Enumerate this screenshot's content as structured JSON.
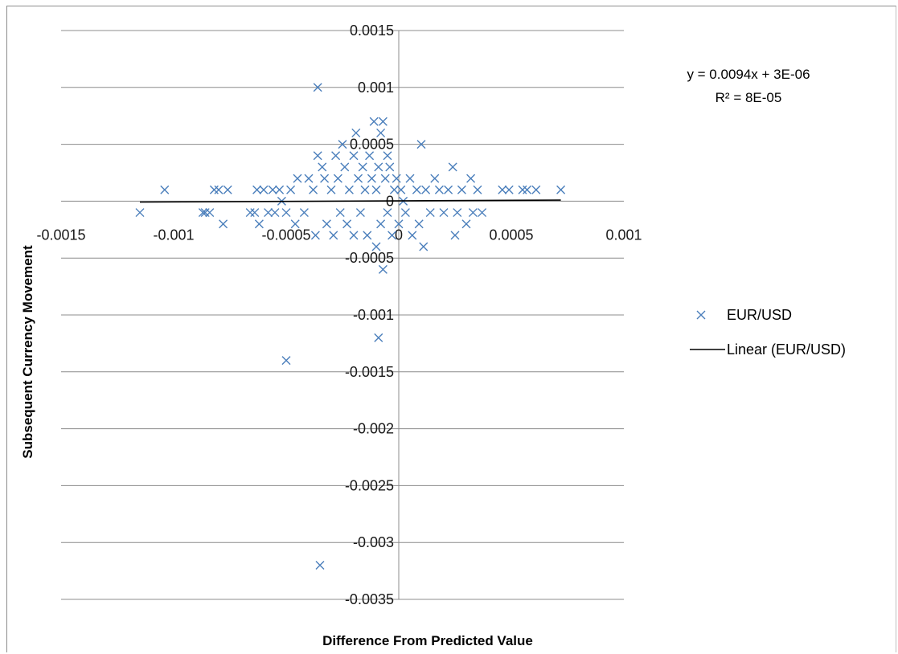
{
  "chart_data": {
    "type": "scatter",
    "xlabel": "Difference From Predicted Value",
    "ylabel": "Subsequent Currency Movement",
    "xlim": [
      -0.0015,
      0.001
    ],
    "ylim": [
      -0.0035,
      0.0015
    ],
    "x_ticks": [
      "-0.0015",
      "-0.001",
      "-0.0005",
      "0",
      "0.0005",
      "0.001"
    ],
    "y_ticks": [
      "0.0015",
      "0.001",
      "0.0005",
      "0",
      "-0.0005",
      "-0.001",
      "-0.0015",
      "-0.002",
      "-0.0025",
      "-0.003",
      "-0.0035"
    ],
    "grid": "horizontal",
    "legend_position": "right",
    "trendline": {
      "equation": "y = 0.0094x + 3E-06",
      "r2": "R² = 8E-05",
      "slope": 0.0094,
      "intercept": 3e-06,
      "x_range": [
        -0.00115,
        0.00072
      ]
    },
    "series": [
      {
        "name": "EUR/USD",
        "marker": "x",
        "color": "#4a7ebb",
        "points": [
          [
            -0.00115,
            -0.0001
          ],
          [
            -0.00104,
            0.0001
          ],
          [
            -0.00087,
            -0.0001
          ],
          [
            -0.00086,
            -0.0001
          ],
          [
            -0.00084,
            -0.0001
          ],
          [
            -0.00082,
            0.0001
          ],
          [
            -0.0008,
            0.0001
          ],
          [
            -0.00078,
            -0.0002
          ],
          [
            -0.00076,
            0.0001
          ],
          [
            -0.00066,
            -0.0001
          ],
          [
            -0.00064,
            -0.0001
          ],
          [
            -0.00063,
            0.0001
          ],
          [
            -0.00062,
            -0.0002
          ],
          [
            -0.0006,
            0.0001
          ],
          [
            -0.00058,
            -0.0001
          ],
          [
            -0.00056,
            0.0001
          ],
          [
            -0.00055,
            -0.0001
          ],
          [
            -0.00053,
            0.0001
          ],
          [
            -0.00052,
            0.0
          ],
          [
            -0.0005,
            -0.0001
          ],
          [
            -0.0005,
            -0.0014
          ],
          [
            -0.00048,
            0.0001
          ],
          [
            -0.00046,
            -0.0002
          ],
          [
            -0.00045,
            0.0002
          ],
          [
            -0.00042,
            -0.0001
          ],
          [
            -0.0004,
            0.0002
          ],
          [
            -0.00038,
            0.0001
          ],
          [
            -0.00037,
            -0.0003
          ],
          [
            -0.00036,
            0.0004
          ],
          [
            -0.00036,
            0.001
          ],
          [
            -0.00035,
            -0.0032
          ],
          [
            -0.00034,
            0.0003
          ],
          [
            -0.00033,
            0.0002
          ],
          [
            -0.00032,
            -0.0002
          ],
          [
            -0.0003,
            0.0001
          ],
          [
            -0.00029,
            -0.0003
          ],
          [
            -0.00028,
            0.0004
          ],
          [
            -0.00027,
            0.0002
          ],
          [
            -0.00026,
            -0.0001
          ],
          [
            -0.00025,
            0.0005
          ],
          [
            -0.00024,
            0.0003
          ],
          [
            -0.00023,
            -0.0002
          ],
          [
            -0.00022,
            0.0001
          ],
          [
            -0.0002,
            0.0004
          ],
          [
            -0.0002,
            -0.0003
          ],
          [
            -0.00019,
            0.0006
          ],
          [
            -0.00018,
            0.0002
          ],
          [
            -0.00017,
            -0.0001
          ],
          [
            -0.00016,
            0.0003
          ],
          [
            -0.00015,
            0.0001
          ],
          [
            -0.00014,
            -0.0003
          ],
          [
            -0.00013,
            0.0004
          ],
          [
            -0.00012,
            0.0002
          ],
          [
            -0.00011,
            0.0007
          ],
          [
            -0.0001,
            -0.0004
          ],
          [
            -0.0001,
            0.0001
          ],
          [
            -9e-05,
            0.0003
          ],
          [
            -9e-05,
            -0.0012
          ],
          [
            -8e-05,
            0.0006
          ],
          [
            -8e-05,
            -0.0002
          ],
          [
            -7e-05,
            0.0007
          ],
          [
            -7e-05,
            -0.0006
          ],
          [
            -6e-05,
            0.0002
          ],
          [
            -5e-05,
            0.0004
          ],
          [
            -5e-05,
            -0.0001
          ],
          [
            -4e-05,
            0.0003
          ],
          [
            -3e-05,
            -0.0003
          ],
          [
            -2e-05,
            0.0001
          ],
          [
            -1e-05,
            0.0002
          ],
          [
            0.0,
            -0.0002
          ],
          [
            1e-05,
            0.0001
          ],
          [
            2e-05,
            0.0
          ],
          [
            3e-05,
            -0.0001
          ],
          [
            5e-05,
            0.0002
          ],
          [
            6e-05,
            -0.0003
          ],
          [
            8e-05,
            0.0001
          ],
          [
            9e-05,
            -0.0002
          ],
          [
            0.0001,
            0.0005
          ],
          [
            0.00011,
            -0.0004
          ],
          [
            0.00012,
            0.0001
          ],
          [
            0.00014,
            -0.0001
          ],
          [
            0.00016,
            0.0002
          ],
          [
            0.00018,
            0.0001
          ],
          [
            0.0002,
            -0.0001
          ],
          [
            0.00022,
            0.0001
          ],
          [
            0.00024,
            0.0003
          ],
          [
            0.00025,
            -0.0003
          ],
          [
            0.00026,
            -0.0001
          ],
          [
            0.00028,
            0.0001
          ],
          [
            0.0003,
            -0.0002
          ],
          [
            0.00032,
            0.0002
          ],
          [
            0.00033,
            -0.0001
          ],
          [
            0.00035,
            0.0001
          ],
          [
            0.00037,
            -0.0001
          ],
          [
            0.00046,
            0.0001
          ],
          [
            0.00049,
            0.0001
          ],
          [
            0.00055,
            0.0001
          ],
          [
            0.00057,
            0.0001
          ],
          [
            0.00061,
            0.0001
          ],
          [
            0.00072,
            0.0001
          ]
        ]
      }
    ],
    "legend": [
      {
        "label": "EUR/USD",
        "kind": "marker-x"
      },
      {
        "label": "Linear (EUR/USD)",
        "kind": "line"
      }
    ]
  }
}
